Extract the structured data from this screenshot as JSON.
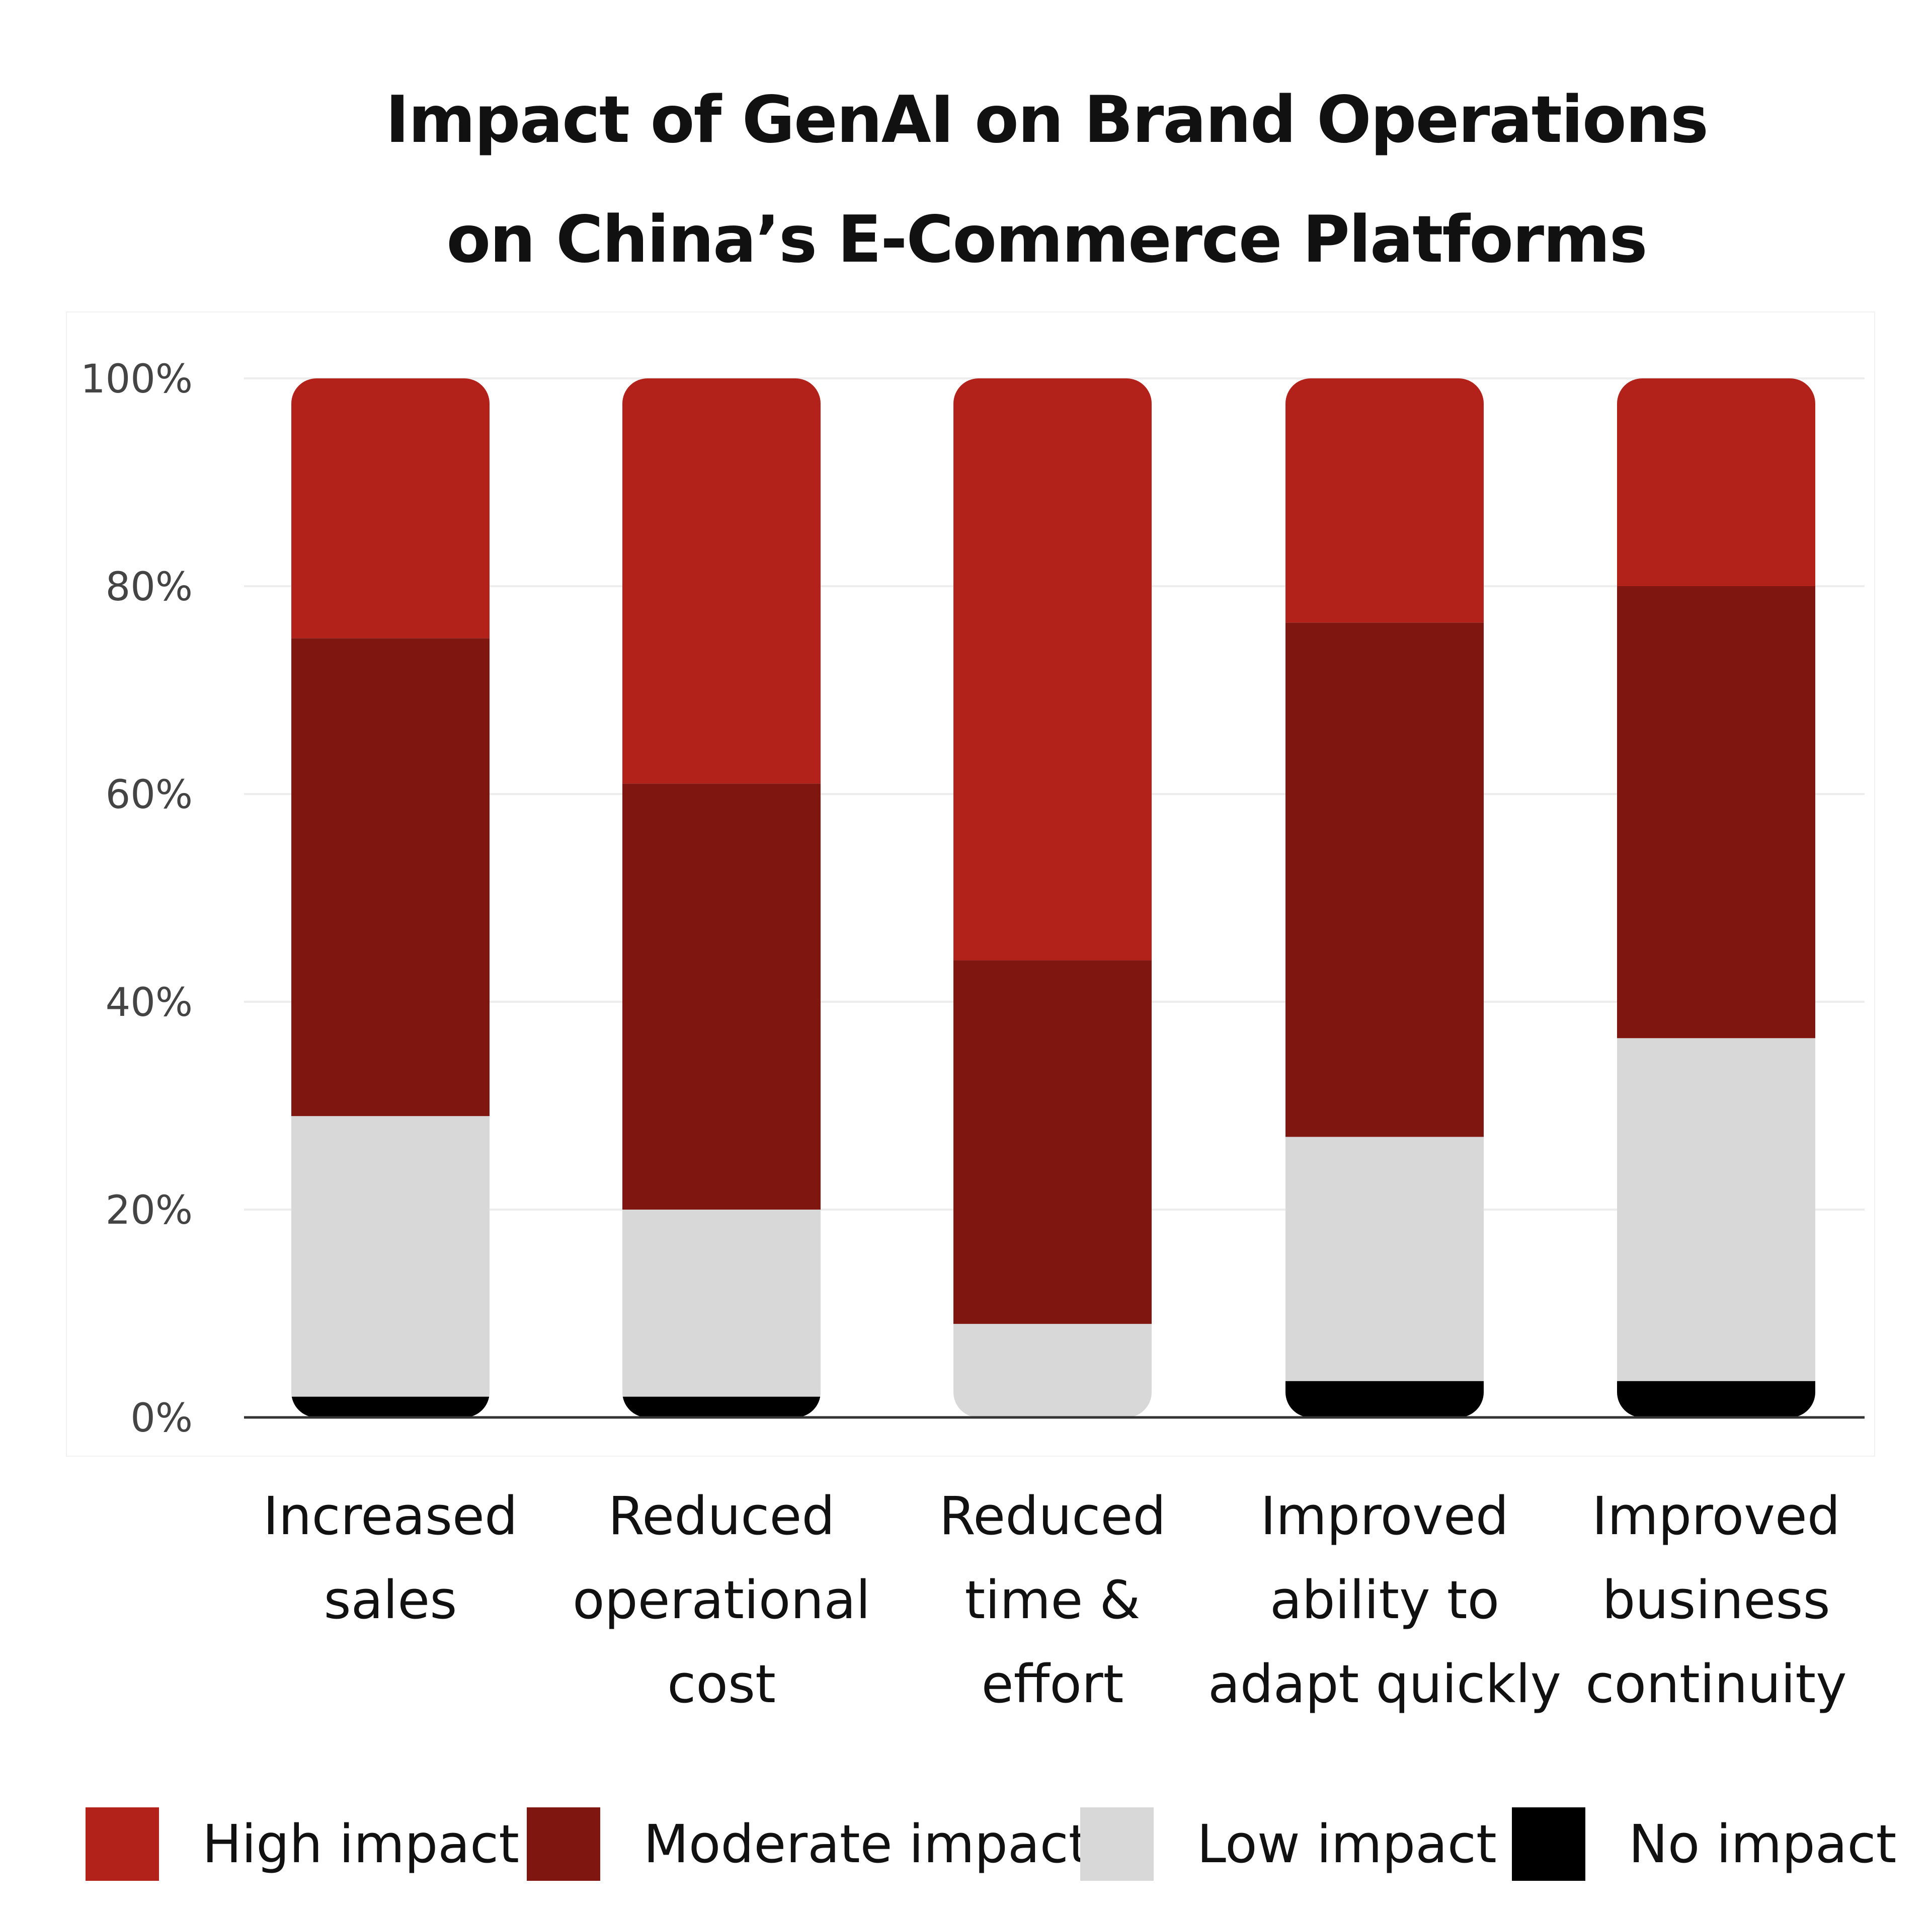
{
  "title_lines": [
    "Impact of GenAI on Brand Operations",
    "on China’s E-Commerce Platforms"
  ],
  "category_labels": [
    [
      "Increased",
      "sales"
    ],
    [
      "Reduced",
      "operational",
      "cost"
    ],
    [
      "Reduced",
      "time &",
      "effort"
    ],
    [
      "Improved",
      "ability to",
      "adapt quickly"
    ],
    [
      "Improved",
      "business",
      "continuity"
    ]
  ],
  "legend": [
    {
      "label": "High impact",
      "color": "#b2221a"
    },
    {
      "label": "Moderate impact",
      "color": "#7f1610"
    },
    {
      "label": "Low impact",
      "color": "#d8d8d8"
    },
    {
      "label": "No impact",
      "color": "#000000"
    }
  ],
  "chart_data": {
    "type": "bar",
    "stacked": true,
    "title": "Impact of GenAI on Brand Operations on China’s E-Commerce Platforms",
    "categories": [
      "Increased sales",
      "Reduced operational cost",
      "Reduced time & effort",
      "Improved ability to adapt quickly",
      "Improved business continuity"
    ],
    "yticks": [
      "0%",
      "20%",
      "40%",
      "60%",
      "80%",
      "100%"
    ],
    "ylim": [
      0,
      100
    ],
    "grid": true,
    "legend_position": "bottom",
    "series": [
      {
        "name": "No impact",
        "color": "#000000",
        "values": [
          2,
          2,
          0,
          3.5,
          3.5
        ]
      },
      {
        "name": "Low impact",
        "color": "#d8d8d8",
        "values": [
          27,
          18,
          9,
          23.5,
          33
        ]
      },
      {
        "name": "Moderate impact",
        "color": "#7f1610",
        "values": [
          46,
          41,
          35,
          49.5,
          43.5
        ]
      },
      {
        "name": "High impact",
        "color": "#b2221a",
        "values": [
          25,
          39,
          56,
          23.5,
          20
        ]
      }
    ]
  }
}
